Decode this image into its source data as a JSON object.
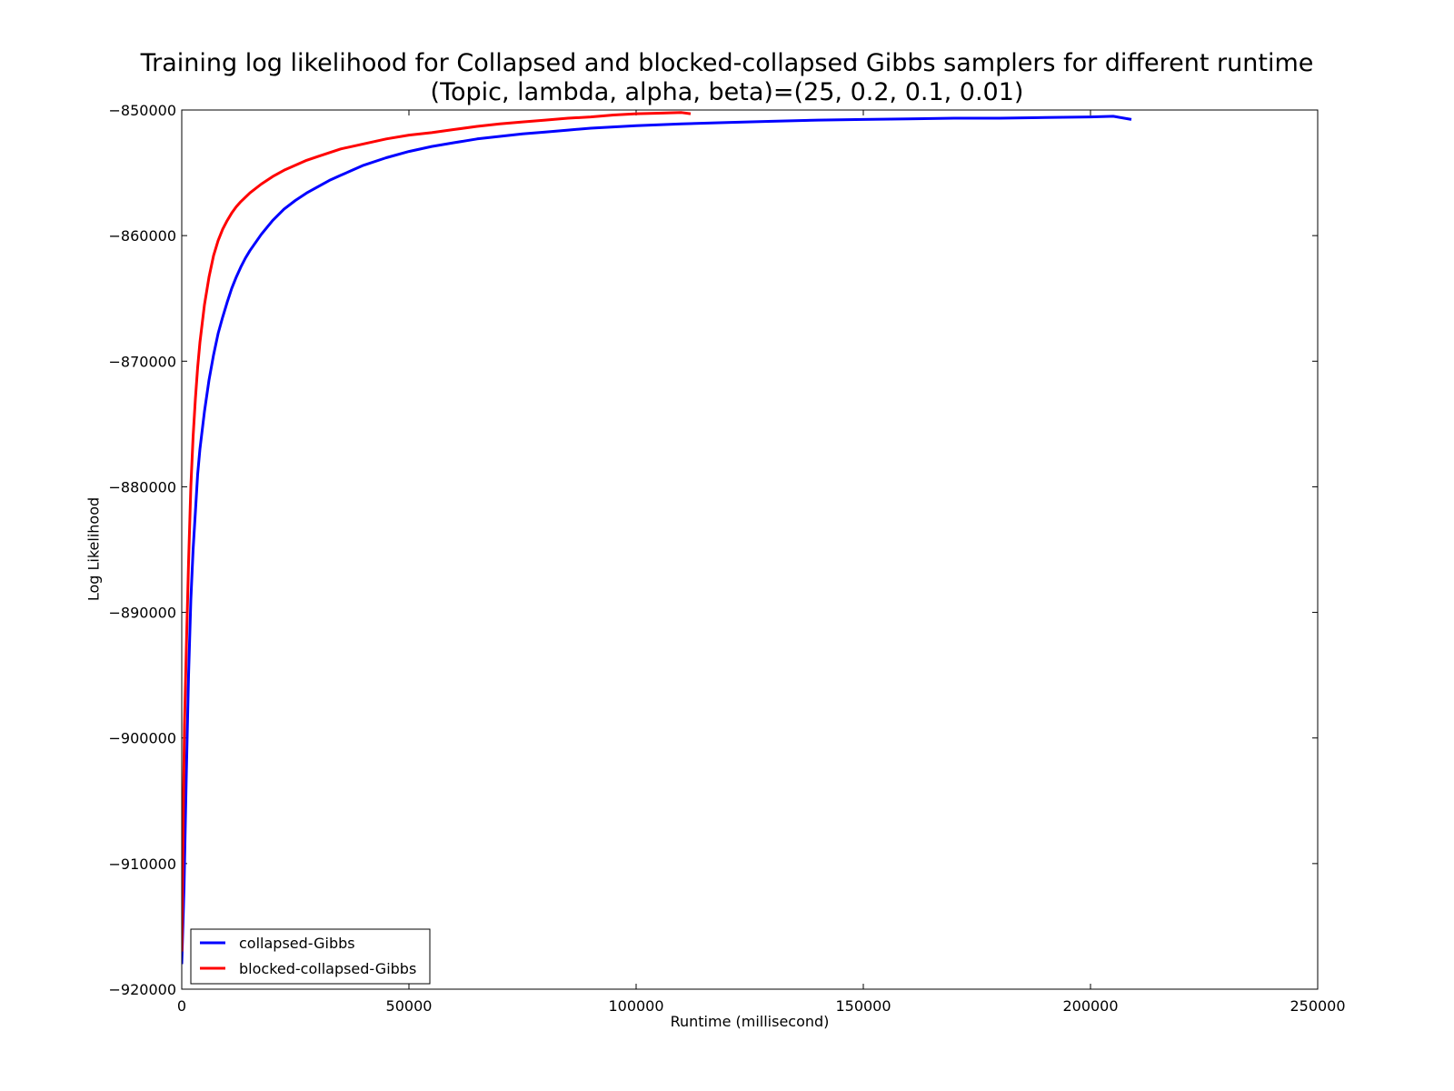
{
  "chart_data": {
    "type": "line",
    "title": "Training log likelihood for Collapsed and blocked-collapsed Gibbs samplers for different runtime",
    "subtitle": "(Topic, lambda, alpha, beta)=(25, 0.2, 0.1, 0.01)",
    "xlabel": "Runtime (millisecond)",
    "ylabel": "Log Likelihood",
    "xlim": [
      0,
      250000
    ],
    "ylim": [
      -920000,
      -850000
    ],
    "x_ticks": [
      0,
      50000,
      100000,
      150000,
      200000,
      250000
    ],
    "x_tick_labels": [
      "0",
      "50000",
      "100000",
      "150000",
      "200000",
      "250000"
    ],
    "y_ticks": [
      -850000,
      -860000,
      -870000,
      -880000,
      -890000,
      -900000,
      -910000,
      -920000
    ],
    "y_tick_labels": [
      "−850000",
      "−860000",
      "−870000",
      "−880000",
      "−890000",
      "−900000",
      "−910000",
      "−920000"
    ],
    "grid": false,
    "legend_position": "lower-left",
    "series": [
      {
        "name": "collapsed-Gibbs",
        "color": "#0000ff",
        "points": [
          [
            0,
            -918000
          ],
          [
            500,
            -912000
          ],
          [
            1000,
            -903000
          ],
          [
            1500,
            -895000
          ],
          [
            2000,
            -889000
          ],
          [
            2500,
            -885000
          ],
          [
            3000,
            -882000
          ],
          [
            3500,
            -879000
          ],
          [
            4000,
            -877000
          ],
          [
            5000,
            -874000
          ],
          [
            6000,
            -871500
          ],
          [
            7000,
            -869500
          ],
          [
            8000,
            -867800
          ],
          [
            9000,
            -866500
          ],
          [
            10000,
            -865300
          ],
          [
            11000,
            -864200
          ],
          [
            12000,
            -863300
          ],
          [
            13000,
            -862500
          ],
          [
            14000,
            -861800
          ],
          [
            15000,
            -861200
          ],
          [
            17500,
            -859900
          ],
          [
            20000,
            -858800
          ],
          [
            22500,
            -857900
          ],
          [
            25000,
            -857200
          ],
          [
            27500,
            -856600
          ],
          [
            30000,
            -856100
          ],
          [
            32500,
            -855600
          ],
          [
            35000,
            -855200
          ],
          [
            37500,
            -854800
          ],
          [
            40000,
            -854400
          ],
          [
            45000,
            -853800
          ],
          [
            50000,
            -853300
          ],
          [
            55000,
            -852900
          ],
          [
            60000,
            -852600
          ],
          [
            65000,
            -852300
          ],
          [
            70000,
            -852100
          ],
          [
            75000,
            -851900
          ],
          [
            80000,
            -851750
          ],
          [
            85000,
            -851600
          ],
          [
            90000,
            -851450
          ],
          [
            95000,
            -851350
          ],
          [
            100000,
            -851250
          ],
          [
            110000,
            -851100
          ],
          [
            120000,
            -851000
          ],
          [
            130000,
            -850900
          ],
          [
            140000,
            -850800
          ],
          [
            150000,
            -850750
          ],
          [
            160000,
            -850700
          ],
          [
            170000,
            -850650
          ],
          [
            180000,
            -850650
          ],
          [
            190000,
            -850600
          ],
          [
            200000,
            -850550
          ],
          [
            205000,
            -850500
          ],
          [
            209000,
            -850750
          ]
        ]
      },
      {
        "name": "blocked-collapsed-Gibbs",
        "color": "#ff0000",
        "points": [
          [
            0,
            -917000
          ],
          [
            300,
            -907000
          ],
          [
            600,
            -899000
          ],
          [
            1000,
            -893000
          ],
          [
            1500,
            -886000
          ],
          [
            2000,
            -880000
          ],
          [
            2500,
            -876000
          ],
          [
            3000,
            -873000
          ],
          [
            3500,
            -870500
          ],
          [
            4000,
            -868500
          ],
          [
            5000,
            -865500
          ],
          [
            6000,
            -863300
          ],
          [
            7000,
            -861600
          ],
          [
            8000,
            -860400
          ],
          [
            9000,
            -859500
          ],
          [
            10000,
            -858800
          ],
          [
            11000,
            -858200
          ],
          [
            12000,
            -857700
          ],
          [
            13000,
            -857300
          ],
          [
            15000,
            -856600
          ],
          [
            17500,
            -855900
          ],
          [
            20000,
            -855300
          ],
          [
            22500,
            -854800
          ],
          [
            25000,
            -854400
          ],
          [
            27500,
            -854000
          ],
          [
            30000,
            -853700
          ],
          [
            35000,
            -853100
          ],
          [
            40000,
            -852700
          ],
          [
            45000,
            -852300
          ],
          [
            50000,
            -852000
          ],
          [
            55000,
            -851800
          ],
          [
            60000,
            -851550
          ],
          [
            65000,
            -851300
          ],
          [
            70000,
            -851100
          ],
          [
            75000,
            -850950
          ],
          [
            80000,
            -850800
          ],
          [
            85000,
            -850650
          ],
          [
            90000,
            -850550
          ],
          [
            95000,
            -850400
          ],
          [
            100000,
            -850300
          ],
          [
            105000,
            -850250
          ],
          [
            110000,
            -850200
          ],
          [
            112000,
            -850300
          ]
        ]
      }
    ]
  }
}
